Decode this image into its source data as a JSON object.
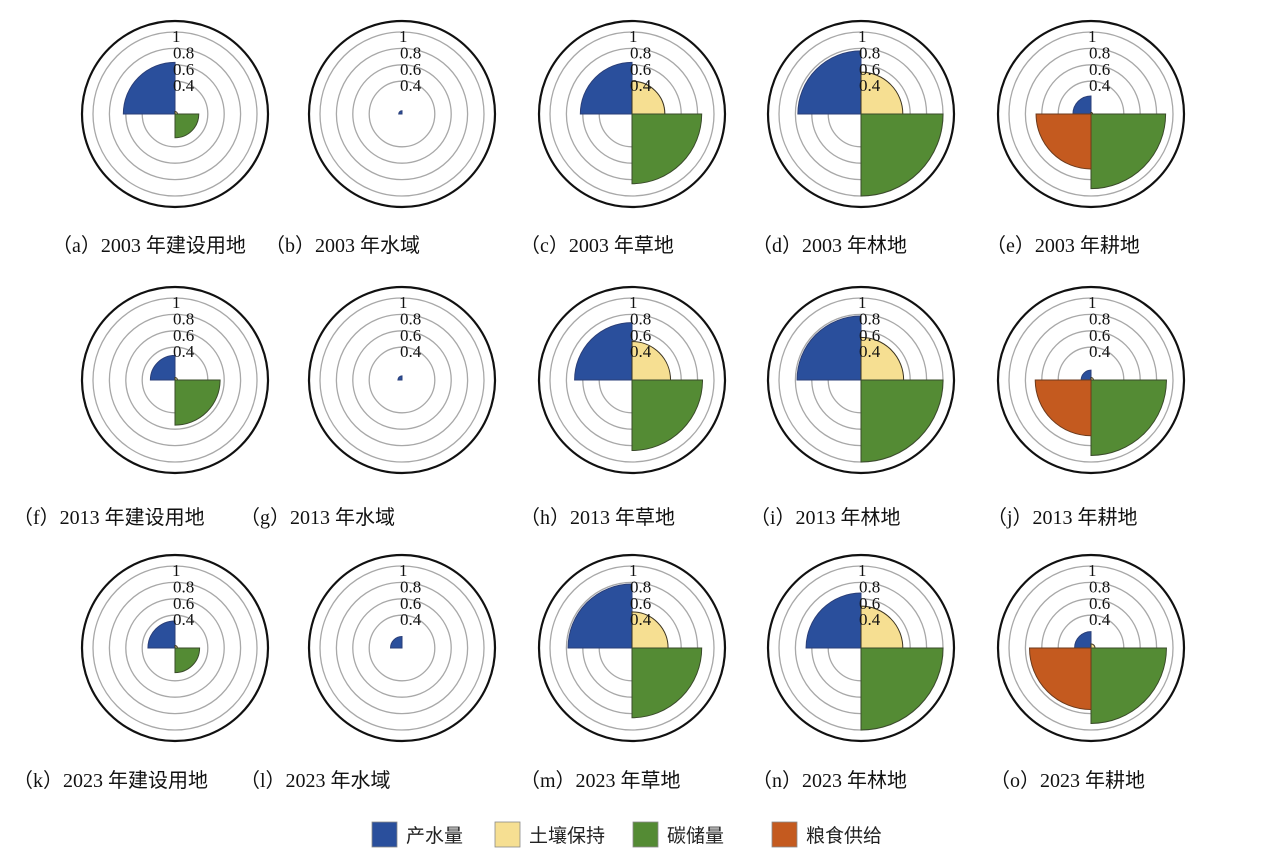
{
  "chart_data": {
    "type": "polar-area",
    "title": "",
    "radial_axis": {
      "ticks": [
        0.4,
        0.6,
        0.8,
        1
      ],
      "tick_labels": [
        "0.4",
        "0.6",
        "0.8",
        "1"
      ],
      "range": [
        0,
        1
      ],
      "grid": true
    },
    "series_order": [
      "water_yield",
      "soil_retention",
      "carbon_storage",
      "food_supply"
    ],
    "legend": {
      "position": "bottom",
      "entries": [
        {
          "key": "water_yield",
          "label": "产水量",
          "color": "#2a4f9c"
        },
        {
          "key": "soil_retention",
          "label": "土壤保持",
          "color": "#f6df92"
        },
        {
          "key": "carbon_storage",
          "label": "碳储量",
          "color": "#548b34"
        },
        {
          "key": "food_supply",
          "label": "粮食供给",
          "color": "#c45a1f"
        }
      ]
    },
    "panels": [
      {
        "id": "a",
        "caption": "（a）2003 年建设用地",
        "year": "2003",
        "land_use": "建设用地",
        "values": {
          "water_yield": 0.63,
          "soil_retention": 0.03,
          "carbon_storage": 0.29,
          "food_supply": 0
        }
      },
      {
        "id": "b",
        "caption": "（b）2003 年水域",
        "year": "2003",
        "land_use": "水域",
        "values": {
          "water_yield": 0.04,
          "soil_retention": 0,
          "carbon_storage": 0,
          "food_supply": 0
        }
      },
      {
        "id": "c",
        "caption": "（c）2003 年草地",
        "year": "2003",
        "land_use": "草地",
        "values": {
          "water_yield": 0.63,
          "soil_retention": 0.4,
          "carbon_storage": 0.85,
          "food_supply": 0
        }
      },
      {
        "id": "d",
        "caption": "（d）2003 年林地",
        "year": "2003",
        "land_use": "林地",
        "values": {
          "water_yield": 0.77,
          "soil_retention": 0.51,
          "carbon_storage": 1.0,
          "food_supply": 0
        }
      },
      {
        "id": "e",
        "caption": "（e）2003 年耕地",
        "year": "2003",
        "land_use": "耕地",
        "values": {
          "water_yield": 0.22,
          "soil_retention": 0.02,
          "carbon_storage": 0.91,
          "food_supply": 0.67
        }
      },
      {
        "id": "f",
        "caption": "（f）2013 年建设用地",
        "year": "2013",
        "land_use": "建设用地",
        "values": {
          "water_yield": 0.3,
          "soil_retention": 0.03,
          "carbon_storage": 0.55,
          "food_supply": 0
        }
      },
      {
        "id": "g",
        "caption": "（g）2013 年水域",
        "year": "2013",
        "land_use": "水域",
        "values": {
          "water_yield": 0.05,
          "soil_retention": 0,
          "carbon_storage": 0,
          "food_supply": 0
        }
      },
      {
        "id": "h",
        "caption": "（h）2013 年草地",
        "year": "2013",
        "land_use": "草地",
        "values": {
          "water_yield": 0.7,
          "soil_retention": 0.47,
          "carbon_storage": 0.86,
          "food_supply": 0
        }
      },
      {
        "id": "i",
        "caption": "（i）2013 年林地",
        "year": "2013",
        "land_use": "林地",
        "values": {
          "water_yield": 0.78,
          "soil_retention": 0.52,
          "carbon_storage": 1.0,
          "food_supply": 0
        }
      },
      {
        "id": "j",
        "caption": "（j）2013 年耕地",
        "year": "2013",
        "land_use": "耕地",
        "values": {
          "water_yield": 0.12,
          "soil_retention": 0.03,
          "carbon_storage": 0.92,
          "food_supply": 0.68
        }
      },
      {
        "id": "k",
        "caption": "（k）2023 年建设用地",
        "year": "2023",
        "land_use": "建设用地",
        "values": {
          "water_yield": 0.33,
          "soil_retention": 0.03,
          "carbon_storage": 0.3,
          "food_supply": 0
        }
      },
      {
        "id": "l",
        "caption": "（l）2023 年水域",
        "year": "2023",
        "land_use": "水域",
        "values": {
          "water_yield": 0.14,
          "soil_retention": 0,
          "carbon_storage": 0,
          "food_supply": 0
        }
      },
      {
        "id": "m",
        "caption": "（m）2023 年草地",
        "year": "2023",
        "land_use": "草地",
        "values": {
          "water_yield": 0.78,
          "soil_retention": 0.44,
          "carbon_storage": 0.85,
          "food_supply": 0
        }
      },
      {
        "id": "n",
        "caption": "（n）2023 年林地",
        "year": "2023",
        "land_use": "林地",
        "values": {
          "water_yield": 0.67,
          "soil_retention": 0.51,
          "carbon_storage": 1.0,
          "food_supply": 0
        }
      },
      {
        "id": "o",
        "caption": "（o）2023 年耕地",
        "year": "2023",
        "land_use": "耕地",
        "values": {
          "water_yield": 0.2,
          "soil_retention": 0.05,
          "carbon_storage": 0.92,
          "food_supply": 0.75
        }
      }
    ]
  }
}
